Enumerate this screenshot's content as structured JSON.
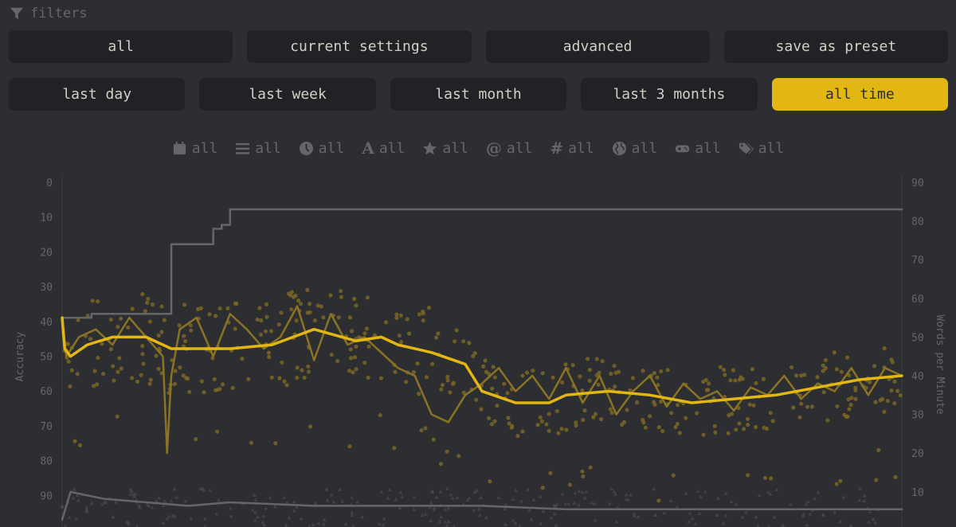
{
  "filters": {
    "title": "filters",
    "presets": [
      {
        "label": "all"
      },
      {
        "label": "current settings"
      },
      {
        "label": "advanced"
      },
      {
        "label": "save as preset"
      }
    ],
    "ranges": [
      {
        "label": "last day",
        "active": false
      },
      {
        "label": "last week",
        "active": false
      },
      {
        "label": "last month",
        "active": false
      },
      {
        "label": "last 3 months",
        "active": false
      },
      {
        "label": "all time",
        "active": true
      }
    ],
    "active_color": "#e2b714",
    "icon_filters": [
      {
        "icon": "calendar-icon",
        "label": "all"
      },
      {
        "icon": "list-icon",
        "label": "all"
      },
      {
        "icon": "clock-icon",
        "label": "all"
      },
      {
        "icon": "language-icon",
        "label": "all"
      },
      {
        "icon": "star-icon",
        "label": "all"
      },
      {
        "icon": "at-icon",
        "label": "all"
      },
      {
        "icon": "hashtag-icon",
        "label": "all"
      },
      {
        "icon": "globe-icon",
        "label": "all"
      },
      {
        "icon": "gamepad-icon",
        "label": "all"
      },
      {
        "icon": "tags-icon",
        "label": "all"
      }
    ]
  },
  "chart_data": {
    "type": "line",
    "left_axis": {
      "label": "Accuracy",
      "ticks": [
        "0",
        "10",
        "20",
        "30",
        "40",
        "50",
        "60",
        "70",
        "80",
        "90"
      ],
      "reversed": true,
      "range": [
        0,
        100
      ]
    },
    "right_axis": {
      "label": "Words per Minute",
      "ticks": [
        "90",
        "80",
        "70",
        "60",
        "50",
        "40",
        "30",
        "20",
        "10"
      ],
      "range": [
        0,
        90
      ]
    },
    "grid": false,
    "colors": {
      "main": "#e2b714",
      "secondary": "#646669",
      "dots": "#7a6525"
    },
    "series": [
      {
        "role": "personal-best-step",
        "color": "#646669",
        "x": [
          0,
          0.03,
          0.035,
          0.13,
          0.17,
          0.18,
          0.19,
          0.2,
          1.0
        ],
        "values": [
          55,
          55,
          56,
          74,
          74,
          78,
          79,
          83,
          83
        ]
      },
      {
        "role": "wpm-average-smooth",
        "color": "#e2b714",
        "x": [
          0,
          0.003,
          0.01,
          0.03,
          0.06,
          0.1,
          0.13,
          0.17,
          0.2,
          0.25,
          0.3,
          0.35,
          0.38,
          0.4,
          0.42,
          0.44,
          0.48,
          0.5,
          0.54,
          0.58,
          0.6,
          0.65,
          0.7,
          0.75,
          0.8,
          0.85,
          0.9,
          0.95,
          1.0
        ],
        "values": [
          55,
          47,
          45,
          48,
          50,
          50,
          47,
          47,
          47,
          48,
          52,
          49,
          50,
          48,
          47,
          46,
          43,
          36,
          33,
          33,
          35,
          36,
          35,
          33,
          34,
          35,
          37,
          39,
          40
        ]
      },
      {
        "role": "wpm-average-short",
        "color": "#8a7324",
        "x": [
          0,
          0.005,
          0.02,
          0.04,
          0.06,
          0.08,
          0.1,
          0.12,
          0.125,
          0.13,
          0.14,
          0.16,
          0.18,
          0.2,
          0.22,
          0.24,
          0.26,
          0.28,
          0.3,
          0.32,
          0.34,
          0.36,
          0.38,
          0.4,
          0.42,
          0.44,
          0.46,
          0.48,
          0.5,
          0.52,
          0.54,
          0.56,
          0.58,
          0.6,
          0.62,
          0.64,
          0.66,
          0.68,
          0.7,
          0.72,
          0.74,
          0.76,
          0.78,
          0.8,
          0.82,
          0.84,
          0.86,
          0.88,
          0.9,
          0.92,
          0.94,
          0.96,
          0.98,
          1.0
        ],
        "values": [
          55,
          45,
          50,
          52,
          48,
          55,
          50,
          45,
          20,
          40,
          52,
          55,
          45,
          56,
          52,
          47,
          50,
          58,
          44,
          56,
          48,
          50,
          46,
          42,
          40,
          30,
          28,
          35,
          38,
          42,
          36,
          40,
          34,
          42,
          33,
          40,
          30,
          36,
          40,
          32,
          38,
          34,
          36,
          31,
          37,
          35,
          40,
          34,
          38,
          36,
          42,
          35,
          42,
          40
        ]
      },
      {
        "role": "accuracy-raw",
        "color": "#646669",
        "x": [
          0,
          0.01,
          0.05,
          0.1,
          0.15,
          0.2,
          0.3,
          0.4,
          0.5,
          0.6,
          0.7,
          0.8,
          0.9,
          1.0
        ],
        "values": [
          97,
          89,
          91,
          92,
          93,
          92,
          93,
          93,
          93,
          94,
          94,
          94,
          94,
          94
        ],
        "axis": "left"
      }
    ],
    "scatter": {
      "role": "wpm-points",
      "color": "#7a6525"
    }
  }
}
